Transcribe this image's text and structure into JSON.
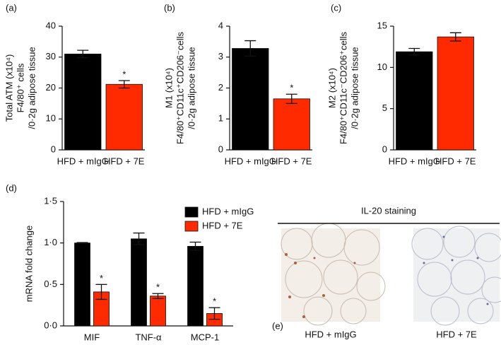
{
  "chart_data": [
    {
      "type": "bar",
      "panel_label": "(a)",
      "ylabel": [
        "Total ATM (x10⁴)",
        "F4/80⁺ cells",
        "/0·2g adipose tissue"
      ],
      "categories": [
        "HFD + mIgG",
        "HFD + 7E"
      ],
      "values": [
        31,
        21.2
      ],
      "errors": [
        1.2,
        1.2
      ],
      "colors": [
        "#000000",
        "#ff2a00"
      ],
      "significance": [
        null,
        "*"
      ],
      "ylim": [
        0,
        40
      ],
      "yticks": [
        0,
        10,
        20,
        30,
        40
      ]
    },
    {
      "type": "bar",
      "panel_label": "(b)",
      "ylabel": [
        "M1 (x10⁴)",
        "F4/80⁺CD11c⁺CD206⁻cells",
        "/0·2g adipose tissue"
      ],
      "categories": [
        "HFD + mIgG",
        "HFD + 7E"
      ],
      "values": [
        3.28,
        1.65
      ],
      "errors": [
        0.25,
        0.15
      ],
      "colors": [
        "#000000",
        "#ff2a00"
      ],
      "significance": [
        null,
        "*"
      ],
      "ylim": [
        0,
        4
      ],
      "yticks": [
        0,
        1,
        2,
        3,
        4
      ]
    },
    {
      "type": "bar",
      "panel_label": "(c)",
      "ylabel": [
        "M2 (x10⁴)",
        "F4/80⁺CD11c⁻CD206⁺cells",
        "/0·2g adipose tissue"
      ],
      "categories": [
        "HFD + mIgG",
        "HFD + 7E"
      ],
      "values": [
        11.9,
        13.7
      ],
      "errors": [
        0.4,
        0.5
      ],
      "colors": [
        "#000000",
        "#ff2a00"
      ],
      "significance": [
        null,
        null
      ],
      "ylim": [
        0,
        15
      ],
      "yticks": [
        0,
        5,
        10,
        15
      ]
    },
    {
      "type": "grouped_bar",
      "panel_label": "(d)",
      "ylabel": [
        "mRNA fold change"
      ],
      "categories": [
        "MIF",
        "TNF-α",
        "MCP-1"
      ],
      "series": [
        {
          "name": "HFD + mIgG",
          "color": "#000000",
          "values": [
            1.0,
            1.05,
            0.96
          ],
          "errors": [
            0.005,
            0.07,
            0.05
          ],
          "significance": [
            null,
            null,
            null
          ]
        },
        {
          "name": "HFD + 7E",
          "color": "#ff2a00",
          "values": [
            0.41,
            0.36,
            0.15
          ],
          "errors": [
            0.09,
            0.03,
            0.07
          ],
          "significance": [
            "*",
            "*",
            "*"
          ]
        }
      ],
      "ylim": [
        0,
        1.5
      ],
      "yticks": [
        {
          "value": 0,
          "label": "0·0"
        },
        {
          "value": 0.5,
          "label": "0·5"
        },
        {
          "value": 1.0,
          "label": "1·0"
        },
        {
          "value": 1.5,
          "label": "1·5"
        }
      ]
    },
    {
      "type": "image",
      "panel_label": "(e)",
      "title": "IL-20 staining",
      "captions": [
        "HFD + mIgG",
        "HFD + 7E"
      ]
    }
  ]
}
